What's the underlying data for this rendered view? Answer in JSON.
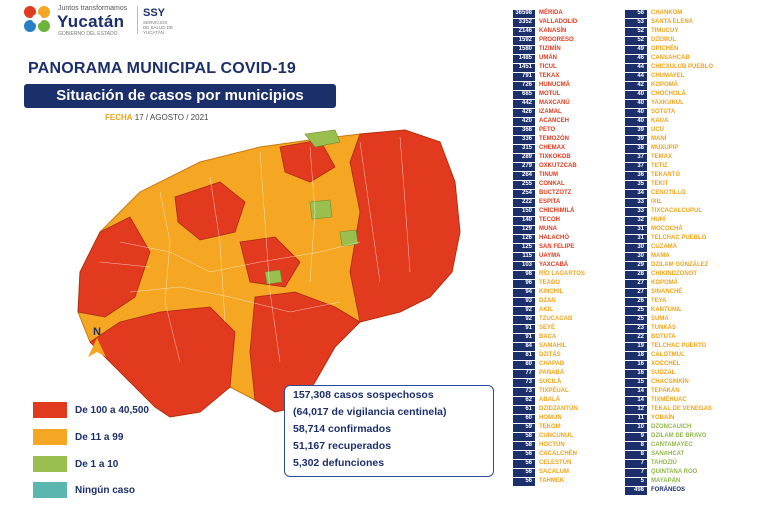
{
  "header": {
    "logo_small": "Juntos transformamos",
    "logo_big": "Yucatán",
    "logo_gov": "GOBIERNO DEL ESTADO",
    "ssy": "SSY",
    "ssy_sub": "SERVICIOS DE SALUD DE YUCATÁN"
  },
  "title": "PANORAMA MUNICIPAL COVID-19",
  "subtitle": "Situación de casos por municipios",
  "fecha_label": "FECHA",
  "fecha_value": "17 / AGOSTO / 2021",
  "colors": {
    "red": "#e23a1e",
    "orange": "#f5a623",
    "green": "#9bbf4f",
    "teal": "#5bb6b0",
    "navy": "#1b2f6b"
  },
  "legend": [
    {
      "label": "De 100 a 40,500",
      "color": "#e23a1e"
    },
    {
      "label": "De 11 a 99",
      "color": "#f5a623"
    },
    {
      "label": "De 1 a 10",
      "color": "#9bbf4f"
    },
    {
      "label": "Ningún caso",
      "color": "#5bb6b0"
    }
  ],
  "north_label": "N",
  "stats": [
    "157,308 casos sospechosos",
    "(64,017 de vigilancia centinela)",
    "58,714 confirmados",
    "51,167 recuperados",
    "5,302 defunciones"
  ],
  "table_left": [
    [
      "36598",
      "MÉRIDA",
      "r"
    ],
    [
      "3352",
      "VALLADOLID",
      "r"
    ],
    [
      "2146",
      "KANASÍN",
      "r"
    ],
    [
      "1592",
      "PROGRESO",
      "r"
    ],
    [
      "1580",
      "TIZIMÍN",
      "r"
    ],
    [
      "1485",
      "UMÁN",
      "r"
    ],
    [
      "1451",
      "TICUL",
      "r"
    ],
    [
      "791",
      "TEKAX",
      "r"
    ],
    [
      "726",
      "HUNUCMÁ",
      "r"
    ],
    [
      "685",
      "MOTUL",
      "r"
    ],
    [
      "442",
      "MAXCANÚ",
      "r"
    ],
    [
      "426",
      "IZAMAL",
      "r"
    ],
    [
      "420",
      "ACANCEH",
      "r"
    ],
    [
      "368",
      "PETO",
      "r"
    ],
    [
      "336",
      "TEMOZÓN",
      "r"
    ],
    [
      "315",
      "CHEMAX",
      "r"
    ],
    [
      "289",
      "TIXKOKOB",
      "r"
    ],
    [
      "279",
      "OXKUTZCAB",
      "r"
    ],
    [
      "264",
      "TINUM",
      "r"
    ],
    [
      "255",
      "CONKAL",
      "r"
    ],
    [
      "254",
      "BUCTZOTZ",
      "r"
    ],
    [
      "222",
      "ESPITA",
      "r"
    ],
    [
      "150",
      "CHICHIMILÁ",
      "r"
    ],
    [
      "140",
      "TECOH",
      "r"
    ],
    [
      "129",
      "MUNA",
      "r"
    ],
    [
      "126",
      "HALACHÓ",
      "r"
    ],
    [
      "125",
      "SAN FELIPE",
      "r"
    ],
    [
      "115",
      "UAYMA",
      "r"
    ],
    [
      "103",
      "YAXCABÁ",
      "r"
    ],
    [
      "98",
      "RÍO LAGARTOS",
      "o"
    ],
    [
      "96",
      "TEABO",
      "o"
    ],
    [
      "94",
      "KINCHIL",
      "o"
    ],
    [
      "93",
      "DZAN",
      "o"
    ],
    [
      "92",
      "AKIL",
      "o"
    ],
    [
      "92",
      "TZUCACAB",
      "o"
    ],
    [
      "91",
      "SEYÉ",
      "o"
    ],
    [
      "91",
      "BACA",
      "o"
    ],
    [
      "84",
      "SAMAHIL",
      "o"
    ],
    [
      "81",
      "DZITÁS",
      "o"
    ],
    [
      "80",
      "CHAPAB",
      "o"
    ],
    [
      "77",
      "PANABÁ",
      "o"
    ],
    [
      "73",
      "SUCILÁ",
      "o"
    ],
    [
      "73",
      "TIXPÉUAL",
      "o"
    ],
    [
      "62",
      "ABALÁ",
      "o"
    ],
    [
      "61",
      "DZIDZANTÚN",
      "o"
    ],
    [
      "60",
      "HOMÚN",
      "o"
    ],
    [
      "59",
      "TEKOM",
      "o"
    ],
    [
      "58",
      "CUNCUNUL",
      "o"
    ],
    [
      "58",
      "HOCTÚN",
      "o"
    ],
    [
      "56",
      "CACALCHÉN",
      "o"
    ],
    [
      "56",
      "CELESTÚN",
      "o"
    ],
    [
      "56",
      "SACALUM",
      "o"
    ],
    [
      "56",
      "TAHMEK",
      "o"
    ]
  ],
  "table_right": [
    [
      "56",
      "CHANKOM",
      "o"
    ],
    [
      "53",
      "SANTA ELENA",
      "o"
    ],
    [
      "52",
      "TIMUCUY",
      "o"
    ],
    [
      "52",
      "DZEMUL",
      "o"
    ],
    [
      "49",
      "OPICHÉN",
      "o"
    ],
    [
      "46",
      "CANSAHCAB",
      "o"
    ],
    [
      "44",
      "CHICXULUB PUEBLO",
      "o"
    ],
    [
      "44",
      "CHUMAYEL",
      "o"
    ],
    [
      "42",
      "KOPOMÁ",
      "o"
    ],
    [
      "40",
      "CHOCHOLÁ",
      "o"
    ],
    [
      "40",
      "YAXKUKUL",
      "o"
    ],
    [
      "40",
      "SOTUTA",
      "o"
    ],
    [
      "40",
      "KAUA",
      "o"
    ],
    [
      "39",
      "UCÚ",
      "o"
    ],
    [
      "39",
      "MANÍ",
      "o"
    ],
    [
      "38",
      "MUXUPIP",
      "o"
    ],
    [
      "37",
      "TEMAX",
      "o"
    ],
    [
      "37",
      "TETIZ",
      "o"
    ],
    [
      "36",
      "TEKANTÓ",
      "o"
    ],
    [
      "35",
      "TEKIT",
      "o"
    ],
    [
      "34",
      "CENOTILLO",
      "o"
    ],
    [
      "33",
      "IXIL",
      "o"
    ],
    [
      "33",
      "TIXCACALCUPUL",
      "o"
    ],
    [
      "32",
      "HUHÍ",
      "o"
    ],
    [
      "31",
      "MOCOCHÁ",
      "o"
    ],
    [
      "31",
      "TELCHAC PUEBLO",
      "o"
    ],
    [
      "30",
      "CUZAMÁ",
      "o"
    ],
    [
      "30",
      "MAMA",
      "o"
    ],
    [
      "29",
      "DZILAM GONZÁLEZ",
      "o"
    ],
    [
      "28",
      "CHIKINDZONOT",
      "o"
    ],
    [
      "27",
      "KOPOMÁ",
      "o"
    ],
    [
      "27",
      "SINANCHÉ",
      "o"
    ],
    [
      "26",
      "TEYA",
      "o"
    ],
    [
      "25",
      "KANTUNIL",
      "o"
    ],
    [
      "25",
      "SUMA",
      "o"
    ],
    [
      "23",
      "TUNKÁS",
      "o"
    ],
    [
      "22",
      "BOTUTA",
      "o"
    ],
    [
      "19",
      "TELCHAC PUERTO",
      "o"
    ],
    [
      "18",
      "CALOTMUL",
      "o"
    ],
    [
      "16",
      "XOCCHEL",
      "o"
    ],
    [
      "16",
      "SUDZAL",
      "o"
    ],
    [
      "15",
      "CHACSINKÍN",
      "o"
    ],
    [
      "14",
      "TEPAKÁN",
      "o"
    ],
    [
      "14",
      "TIXMÉHUAC",
      "o"
    ],
    [
      "12",
      "TEKAL DE VENEGAS",
      "o"
    ],
    [
      "11",
      "YOBAÍN",
      "o"
    ],
    [
      "10",
      "DZONCAUICH",
      "g"
    ],
    [
      "9",
      "DZILAM DE BRAVO",
      "g"
    ],
    [
      "8",
      "CANTAMAYEC",
      "g"
    ],
    [
      "8",
      "SANAHCAT",
      "g"
    ],
    [
      "7",
      "TAHDZIÚ",
      "g"
    ],
    [
      "7",
      "QUINTANA ROO",
      "g"
    ],
    [
      "5",
      "MAYAPÁN",
      "g"
    ],
    [
      "498",
      "FORÁNEOS",
      "t"
    ]
  ]
}
